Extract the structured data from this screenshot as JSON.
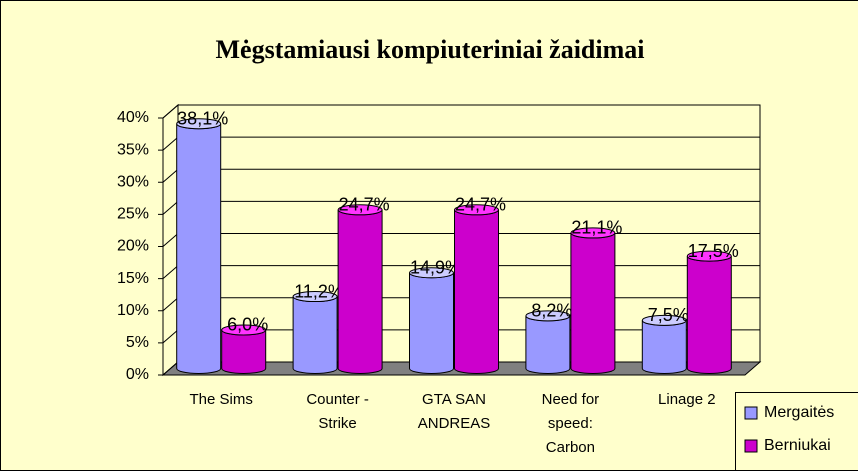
{
  "chart_data": {
    "type": "bar3d",
    "title": "Mėgstamiausi kompiuteriniai žaidimai",
    "categories": [
      "The Sims",
      "Counter - Strike",
      "GTA SAN ANDREAS",
      "Need for speed: Carbon",
      "Linage 2"
    ],
    "series": [
      {
        "name": "Mergaitės",
        "color": "#9999ff",
        "values": [
          38.1,
          11.2,
          14.9,
          8.2,
          7.5
        ],
        "value_labels": [
          "38,1%",
          "11,2%",
          "14,9%",
          "8,2%",
          "7,5%"
        ]
      },
      {
        "name": "Berniukai",
        "color": "#cc00cc",
        "values": [
          6.0,
          24.7,
          24.7,
          21.1,
          17.5
        ],
        "value_labels": [
          "6,0%",
          "24,7%",
          "24,7%",
          "21,1%",
          "17,5%"
        ]
      }
    ],
    "ylim": [
      0,
      40
    ],
    "yticks": [
      {
        "value": 0,
        "label": "0%"
      },
      {
        "value": 5,
        "label": "5%"
      },
      {
        "value": 10,
        "label": "10%"
      },
      {
        "value": 15,
        "label": "15%"
      },
      {
        "value": 20,
        "label": "20%"
      },
      {
        "value": 25,
        "label": "25%"
      },
      {
        "value": 30,
        "label": "30%"
      },
      {
        "value": 35,
        "label": "35%"
      },
      {
        "value": 40,
        "label": "40%"
      }
    ],
    "grid": true,
    "legend": "bottom-right"
  }
}
